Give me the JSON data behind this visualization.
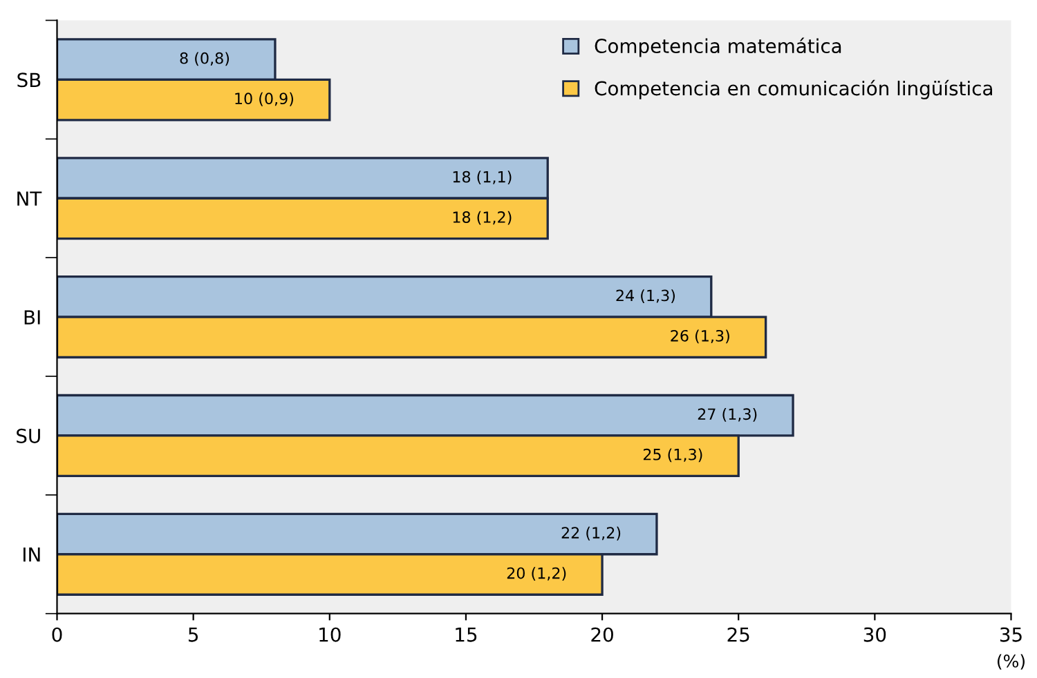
{
  "chart_data": {
    "type": "bar",
    "orientation": "horizontal",
    "xlabel": "(%)",
    "categories": [
      "SB",
      "NT",
      "BI",
      "SU",
      "IN"
    ],
    "series": [
      {
        "name": "Competencia matemática",
        "color": "#a9c4de",
        "values": [
          8,
          18,
          24,
          27,
          22
        ],
        "value_labels": [
          "8 (0,8)",
          "18 (1,1)",
          "24 (1,3)",
          "27 (1,3)",
          "22 (1,2)"
        ]
      },
      {
        "name": "Competencia en comunicación lingüística",
        "color": "#fcc846",
        "values": [
          10,
          18,
          26,
          25,
          20
        ],
        "value_labels": [
          "10 (0,9)",
          "18 (1,2)",
          "26 (1,3)",
          "25 (1,3)",
          "20 (1,2)"
        ]
      }
    ],
    "xlim": [
      0,
      35
    ],
    "xticks": [
      0,
      5,
      10,
      15,
      20,
      25,
      30,
      35
    ],
    "grid": false,
    "legend": "top right"
  }
}
